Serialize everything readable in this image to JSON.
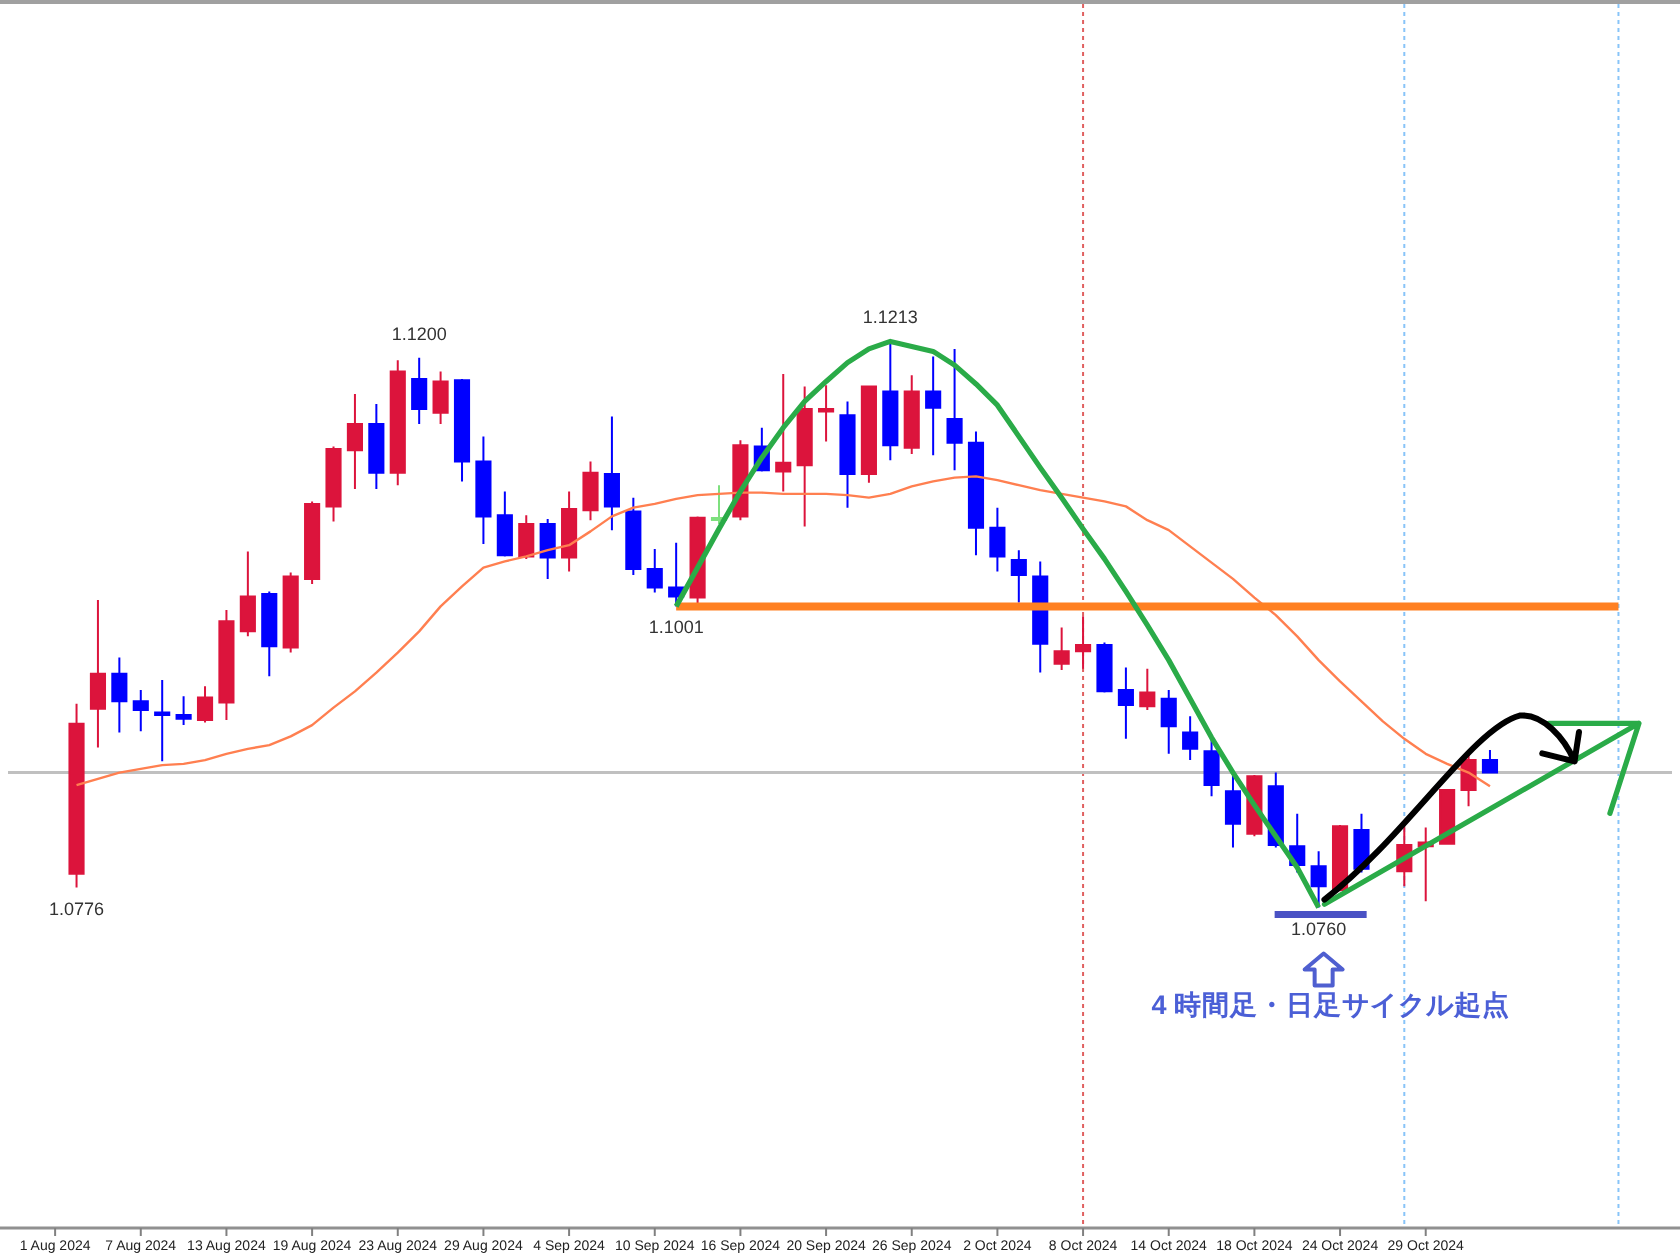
{
  "chart_data": {
    "type": "candlestick",
    "categories": [
      "1 Aug 2024",
      null,
      null,
      null,
      "7 Aug 2024",
      null,
      null,
      null,
      "13 Aug 2024",
      null,
      null,
      null,
      "19 Aug 2024",
      null,
      null,
      null,
      "23 Aug 2024",
      null,
      null,
      null,
      "29 Aug 2024",
      null,
      null,
      null,
      "4 Sep 2024",
      null,
      null,
      null,
      "10 Sep 2024",
      null,
      null,
      null,
      "16 Sep 2024",
      null,
      null,
      null,
      "20 Sep 2024",
      null,
      null,
      null,
      "26 Sep 2024",
      null,
      null,
      null,
      "2 Oct 2024",
      null,
      null,
      null,
      "8 Oct 2024",
      null,
      null,
      null,
      "14 Oct 2024",
      null,
      null,
      null,
      "18 Oct 2024",
      null,
      null,
      null,
      "24 Oct 2024",
      null,
      null,
      null,
      "29 Oct 2024",
      null,
      null,
      null,
      null,
      null,
      null,
      null,
      null,
      null,
      null,
      null
    ],
    "ohlc": [
      null,
      [
        1.0787,
        1.0923,
        1.0776,
        1.0907
      ],
      [
        1.0919,
        1.1006,
        1.0888,
        1.0947
      ],
      [
        1.0947,
        1.096,
        1.09,
        1.0925
      ],
      [
        1.0925,
        1.0934,
        1.0901,
        1.0918
      ],
      [
        1.0916,
        1.0942,
        1.0877,
        1.0914
      ],
      [
        1.0914,
        1.0929,
        1.0906,
        1.0911
      ],
      [
        1.091,
        1.0937,
        1.0908,
        1.0928
      ],
      [
        1.0924,
        1.0998,
        1.091,
        1.0989
      ],
      [
        1.0981,
        1.1045,
        1.0977,
        1.1009
      ],
      [
        1.1011,
        1.1013,
        1.0945,
        1.0969
      ],
      [
        1.0968,
        1.1028,
        1.0964,
        1.1025
      ],
      [
        1.1023,
        1.1085,
        1.1019,
        1.1083
      ],
      [
        1.1081,
        1.1129,
        1.1069,
        1.1127
      ],
      [
        1.1126,
        1.1171,
        1.1095,
        1.1147
      ],
      [
        1.1147,
        1.1163,
        1.1095,
        1.1108
      ],
      [
        1.1108,
        1.1198,
        1.1098,
        1.1189
      ],
      [
        1.1183,
        1.12,
        1.1147,
        1.1159
      ],
      [
        1.1156,
        1.1189,
        1.1147,
        1.1181
      ],
      [
        1.1182,
        1.1183,
        1.1101,
        1.1117
      ],
      [
        1.1117,
        1.1137,
        1.1051,
        1.1073
      ],
      [
        1.1074,
        1.1093,
        1.1041,
        1.1042
      ],
      [
        1.1041,
        1.1074,
        1.1039,
        1.1067
      ],
      [
        1.1067,
        1.1071,
        1.1023,
        1.104
      ],
      [
        1.104,
        1.1093,
        1.1029,
        1.1079
      ],
      [
        1.1078,
        1.1117,
        1.107,
        1.1108
      ],
      [
        1.1107,
        1.1153,
        1.1062,
        1.1081
      ],
      [
        1.1077,
        1.1088,
        1.1026,
        1.1031
      ],
      [
        1.1031,
        1.1047,
        1.1012,
        1.1016
      ],
      [
        1.1016,
        1.1052,
        1.1001,
        1.1009
      ],
      [
        1.1008,
        1.1073,
        1.1002,
        1.1072
      ],
      [
        1.1071,
        1.1098,
        1.1067,
        1.1071
      ],
      [
        1.1073,
        1.1134,
        1.107,
        1.113
      ],
      [
        1.1129,
        1.1144,
        1.1109,
        1.111
      ],
      [
        1.1109,
        1.1187,
        1.1093,
        1.1116
      ],
      [
        1.1114,
        1.1177,
        1.1065,
        1.1159
      ],
      [
        1.1157,
        1.1178,
        1.1133,
        1.1159
      ],
      [
        1.1154,
        1.1165,
        1.108,
        1.1107
      ],
      [
        1.1107,
        1.1177,
        1.11,
        1.1177
      ],
      [
        1.1173,
        1.1213,
        1.1118,
        1.113
      ],
      [
        1.1128,
        1.1186,
        1.1123,
        1.1173
      ],
      [
        1.1173,
        1.1201,
        1.1122,
        1.116
      ],
      [
        1.1151,
        1.1207,
        1.111,
        1.1132
      ],
      [
        1.1132,
        1.1141,
        1.1042,
        1.1064
      ],
      [
        1.1064,
        1.108,
        1.1029,
        1.1041
      ],
      [
        1.1038,
        1.1046,
        1.1004,
        1.1026
      ],
      [
        1.1025,
        1.1037,
        1.0948,
        1.0971
      ],
      [
        1.0955,
        1.0984,
        1.095,
        1.0965
      ],
      [
        1.0965,
        1.0993,
        1.0951,
        1.097
      ],
      [
        1.097,
        1.0972,
        1.0932,
        1.0933
      ],
      [
        1.0934,
        1.0952,
        1.0895,
        1.0922
      ],
      [
        1.0921,
        1.0951,
        1.0918,
        1.0932
      ],
      [
        1.0927,
        1.0934,
        1.0883,
        1.0905
      ],
      [
        1.09,
        1.0913,
        1.0878,
        1.0887
      ],
      [
        1.0885,
        1.0898,
        1.0849,
        1.0858
      ],
      [
        1.0853,
        1.0866,
        1.0808,
        1.0827
      ],
      [
        1.0819,
        1.0866,
        1.0817,
        1.0865
      ],
      [
        1.0857,
        1.0868,
        1.0808,
        1.081
      ],
      [
        1.0809,
        1.0835,
        1.0788,
        1.0794
      ],
      [
        1.0793,
        1.0805,
        1.076,
        1.0777
      ],
      [
        1.0774,
        1.0826,
        1.0773,
        1.0825
      ],
      [
        1.0822,
        1.0835,
        1.0788,
        1.0791
      ],
      null,
      [
        1.0789,
        1.0825,
        1.0777,
        1.081
      ],
      [
        1.0809,
        1.0824,
        1.0765,
        1.0812
      ],
      [
        1.0811,
        1.0854,
        1.0811,
        1.0854
      ],
      [
        1.0854,
        1.0883,
        1.0841,
        1.0878
      ],
      [
        1.0878,
        1.0886,
        1.0868,
        1.0868
      ],
      null,
      null,
      null,
      null,
      null,
      null,
      null,
      null
    ],
    "colors": [
      null,
      "#dc143c",
      "#dc143c",
      "#0000ff",
      "#0000ff",
      "#0000ff",
      "#0000ff",
      "#dc143c",
      "#dc143c",
      "#dc143c",
      "#0000ff",
      "#dc143c",
      "#dc143c",
      "#dc143c",
      "#dc143c",
      "#0000ff",
      "#dc143c",
      "#0000ff",
      "#dc143c",
      "#0000ff",
      "#0000ff",
      "#0000ff",
      "#dc143c",
      "#0000ff",
      "#dc143c",
      "#dc143c",
      "#0000ff",
      "#0000ff",
      "#0000ff",
      "#0000ff",
      "#dc143c",
      "#7ee07e",
      "#dc143c",
      "#0000ff",
      "#dc143c",
      "#dc143c",
      "#dc143c",
      "#0000ff",
      "#dc143c",
      "#0000ff",
      "#dc143c",
      "#0000ff",
      "#0000ff",
      "#0000ff",
      "#0000ff",
      "#0000ff",
      "#0000ff",
      "#dc143c",
      "#dc143c",
      "#0000ff",
      "#0000ff",
      "#dc143c",
      "#0000ff",
      "#0000ff",
      "#0000ff",
      "#0000ff",
      "#dc143c",
      "#0000ff",
      "#0000ff",
      "#0000ff",
      "#dc143c",
      "#0000ff",
      null,
      "#dc143c",
      "#dc143c",
      "#dc143c",
      "#dc143c",
      "#0000ff",
      null,
      null,
      null,
      null,
      null,
      null,
      null,
      null
    ],
    "series": [
      {
        "type": "line",
        "color": "#ff7f50",
        "values": [
          null,
          1.0858,
          1.0863,
          1.0868,
          1.0871,
          1.0874,
          1.0875,
          1.0878,
          1.0883,
          1.0887,
          1.089,
          1.0897,
          1.0906,
          1.092,
          1.0933,
          1.0948,
          1.0964,
          1.0981,
          1.1001,
          1.1017,
          1.1032,
          1.1037,
          1.1041,
          1.1046,
          1.105,
          1.1061,
          1.1073,
          1.108,
          1.1083,
          1.1087,
          1.109,
          1.1091,
          1.1092,
          1.1092,
          1.1091,
          1.1091,
          1.1091,
          1.109,
          1.1088,
          1.1091,
          1.1097,
          1.1101,
          1.1104,
          1.1105,
          1.1102,
          1.1098,
          1.1094,
          1.1091,
          1.1088,
          1.1085,
          1.1081,
          1.107,
          1.1062,
          1.1049,
          1.1036,
          1.1023,
          1.1008,
          1.0994,
          1.0977,
          1.0958,
          1.0941,
          1.0925,
          1.0909,
          1.0895,
          1.0883,
          1.0875,
          1.0868,
          1.0857,
          null,
          null,
          null,
          null,
          null,
          null,
          null,
          null
        ]
      },
      {
        "type": "line",
        "color": "#ff8022",
        "values": [
          null,
          null,
          null,
          null,
          null,
          null,
          null,
          null,
          null,
          null,
          null,
          null,
          null,
          null,
          null,
          null,
          null,
          null,
          null,
          null,
          null,
          null,
          null,
          null,
          null,
          null,
          null,
          null,
          null,
          1.1001,
          1.1001,
          1.1001,
          1.1001,
          1.1001,
          1.1001,
          1.1001,
          1.1001,
          1.1001,
          1.1001,
          1.1001,
          1.1001,
          1.1001,
          1.1001,
          1.1001,
          1.1001,
          1.1001,
          1.1001,
          1.1001,
          1.1001,
          1.1001,
          1.1001,
          1.1001,
          1.1001,
          1.1001,
          1.1001,
          1.1001,
          1.1001,
          1.1001,
          1.1001,
          1.1001,
          1.1001,
          1.1001,
          1.1001,
          1.1001,
          1.1001,
          1.1001,
          1.1001,
          1.1001,
          1.1001,
          1.1001,
          1.1001,
          1.1001,
          1.1001,
          1.1001,
          null,
          null
        ]
      },
      {
        "type": "line",
        "color": "#2aab48",
        "values": [
          null,
          null,
          null,
          null,
          null,
          null,
          null,
          null,
          null,
          null,
          null,
          null,
          null,
          null,
          null,
          null,
          null,
          null,
          null,
          null,
          null,
          null,
          null,
          null,
          null,
          null,
          null,
          null,
          null,
          1.1001,
          1.1032,
          1.1063,
          1.1093,
          1.112,
          1.1144,
          1.1165,
          1.1181,
          1.1196,
          1.1207,
          1.1213,
          1.1209,
          1.1205,
          1.1194,
          1.1179,
          1.1162,
          1.1137,
          1.1112,
          1.1088,
          1.1063,
          1.1039,
          1.1013,
          1.0986,
          1.0958,
          1.0927,
          1.0896,
          1.0868,
          1.0842,
          1.0817,
          1.0792,
          1.076,
          null,
          null,
          null,
          null,
          null,
          null,
          null,
          null,
          null,
          null,
          null,
          null,
          null,
          null,
          null,
          null
        ]
      }
    ],
    "tick_labels": "x",
    "ref_lines": [
      {
        "axis": "x",
        "value": "8 Oct 2024",
        "color": "#e06060",
        "line_style": "dotted"
      },
      {
        "axis": "y",
        "value": 1.0868,
        "color": "#c0c0c0",
        "line_style": "solid"
      }
    ],
    "annotations": [
      {
        "text": "1.1200",
        "y": 1.12
      },
      {
        "text": "1.1213",
        "y": 1.1213
      },
      {
        "text": "1.1001",
        "y": 1.1001
      },
      {
        "text": "1.0776",
        "y": 1.0776
      },
      {
        "text": "1.0760",
        "y": 1.076
      },
      "4 時間足・日足サイクル起点"
    ]
  }
}
